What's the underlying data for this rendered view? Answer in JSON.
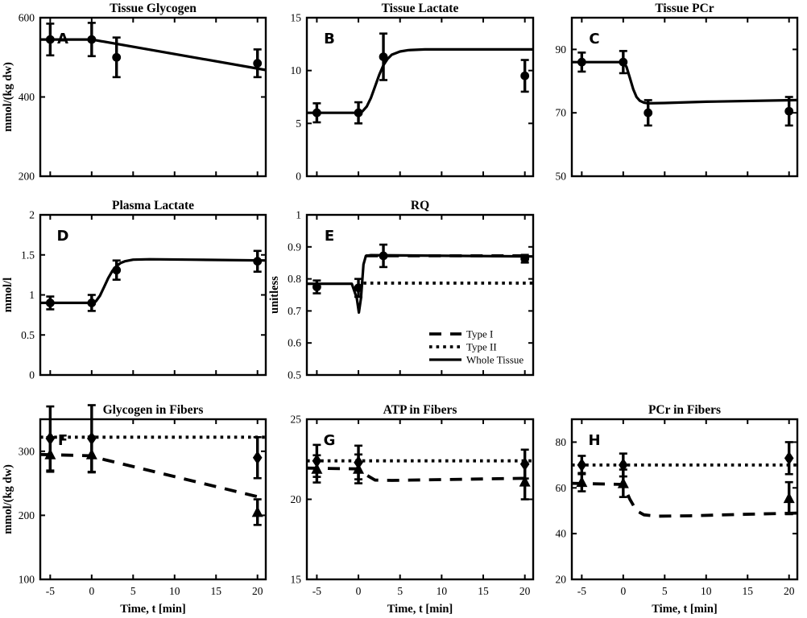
{
  "figure": {
    "background": "#ffffff",
    "ink": "#000000"
  },
  "chart_data": [
    {
      "id": "A",
      "type": "line",
      "title": "Tissue Glycogen",
      "ylabel": "mmol/(kg dw)",
      "xlabel": "",
      "row": 0,
      "col": 0,
      "xlim": [
        -6.2,
        21
      ],
      "ylim": [
        200,
        600
      ],
      "xticks": [
        -5,
        0,
        5,
        10,
        15,
        20
      ],
      "yticks": [
        200,
        400,
        600
      ],
      "show_xtick_labels": false,
      "series": [
        {
          "name": "Whole Tissue",
          "line_style": "solid",
          "marker": "circle",
          "line": [
            [
              -6.2,
              545
            ],
            [
              0,
              545
            ],
            [
              21,
              468
            ]
          ],
          "points": [
            {
              "x": -5,
              "y": 545,
              "err": 40
            },
            {
              "x": 0,
              "y": 545,
              "err": 42
            },
            {
              "x": 3,
              "y": 500,
              "err": 50
            },
            {
              "x": 20,
              "y": 485,
              "err": 35
            }
          ]
        }
      ]
    },
    {
      "id": "B",
      "type": "line",
      "title": "Tissue Lactate",
      "ylabel": "",
      "xlabel": "",
      "row": 0,
      "col": 1,
      "xlim": [
        -6.2,
        21
      ],
      "ylim": [
        0,
        15
      ],
      "xticks": [
        -5,
        0,
        5,
        10,
        15,
        20
      ],
      "yticks": [
        0,
        5,
        10,
        15
      ],
      "show_xtick_labels": false,
      "series": [
        {
          "name": "Whole Tissue",
          "line_style": "solid",
          "marker": "circle",
          "line": [
            [
              -6.2,
              6
            ],
            [
              0,
              6
            ],
            [
              0.5,
              6.15
            ],
            [
              1,
              6.6
            ],
            [
              1.5,
              7.4
            ],
            [
              2,
              8.5
            ],
            [
              2.5,
              9.6
            ],
            [
              3,
              10.5
            ],
            [
              3.5,
              11.1
            ],
            [
              4,
              11.5
            ],
            [
              5,
              11.8
            ],
            [
              6,
              11.93
            ],
            [
              8,
              12
            ],
            [
              21,
              12
            ]
          ],
          "points": [
            {
              "x": -5,
              "y": 6,
              "err": 0.9
            },
            {
              "x": 0,
              "y": 6,
              "err": 1.0
            },
            {
              "x": 3,
              "y": 11.3,
              "err": 2.2
            },
            {
              "x": 20,
              "y": 9.5,
              "err": 1.5
            }
          ]
        }
      ]
    },
    {
      "id": "C",
      "type": "line",
      "title": "Tissue PCr",
      "ylabel": "",
      "xlabel": "",
      "row": 0,
      "col": 2,
      "xlim": [
        -6.2,
        21
      ],
      "ylim": [
        50,
        100
      ],
      "xticks": [
        -5,
        0,
        5,
        10,
        15,
        20
      ],
      "yticks": [
        50,
        70,
        90
      ],
      "show_xtick_labels": false,
      "series": [
        {
          "name": "Whole Tissue",
          "line_style": "solid",
          "marker": "circle",
          "line": [
            [
              -6.2,
              86
            ],
            [
              0,
              86
            ],
            [
              0.4,
              84.5
            ],
            [
              0.8,
              81
            ],
            [
              1.2,
              77.5
            ],
            [
              1.6,
              75
            ],
            [
              2,
              73.8
            ],
            [
              2.5,
              73.2
            ],
            [
              3,
              73
            ],
            [
              5,
              73.1
            ],
            [
              10,
              73.5
            ],
            [
              21,
              74
            ]
          ],
          "points": [
            {
              "x": -5,
              "y": 86,
              "err": 3
            },
            {
              "x": 0,
              "y": 86,
              "err": 3.5
            },
            {
              "x": 3,
              "y": 70,
              "err": 4
            },
            {
              "x": 20,
              "y": 70.5,
              "err": 4.5
            }
          ]
        }
      ]
    },
    {
      "id": "D",
      "type": "line",
      "title": "Plasma Lactate",
      "ylabel": "mmol/l",
      "xlabel": "",
      "row": 1,
      "col": 0,
      "xlim": [
        -6.2,
        21
      ],
      "ylim": [
        0,
        2
      ],
      "xticks": [
        -5,
        0,
        5,
        10,
        15,
        20
      ],
      "yticks": [
        0,
        0.5,
        1,
        1.5,
        2
      ],
      "show_xtick_labels": false,
      "series": [
        {
          "name": "Whole Tissue",
          "line_style": "solid",
          "marker": "circle",
          "line": [
            [
              -6.2,
              0.9
            ],
            [
              0,
              0.9
            ],
            [
              0.5,
              0.92
            ],
            [
              1,
              0.99
            ],
            [
              1.5,
              1.1
            ],
            [
              2,
              1.21
            ],
            [
              2.5,
              1.3
            ],
            [
              3,
              1.36
            ],
            [
              3.5,
              1.4
            ],
            [
              4,
              1.42
            ],
            [
              5,
              1.44
            ],
            [
              7,
              1.445
            ],
            [
              12,
              1.44
            ],
            [
              21,
              1.43
            ]
          ],
          "points": [
            {
              "x": -5,
              "y": 0.9,
              "err": 0.08
            },
            {
              "x": 0,
              "y": 0.9,
              "err": 0.1
            },
            {
              "x": 3,
              "y": 1.31,
              "err": 0.12
            },
            {
              "x": 20,
              "y": 1.42,
              "err": 0.13
            }
          ]
        }
      ]
    },
    {
      "id": "E",
      "type": "line",
      "title": "RQ",
      "ylabel": "unitless",
      "xlabel": "",
      "row": 1,
      "col": 1,
      "xlim": [
        -6.2,
        21
      ],
      "ylim": [
        0.5,
        1
      ],
      "xticks": [
        -5,
        0,
        5,
        10,
        15,
        20
      ],
      "yticks": [
        0.5,
        0.6,
        0.7,
        0.8,
        0.9,
        1
      ],
      "show_xtick_labels": false,
      "series": [
        {
          "name": "Type I",
          "line_style": "dashed",
          "marker": "none",
          "line": [
            [
              0.9,
              0.872
            ],
            [
              21,
              0.872
            ]
          ],
          "points": []
        },
        {
          "name": "Type II",
          "line_style": "dotted",
          "marker": "none",
          "line": [
            [
              0.6,
              0.787
            ],
            [
              21,
              0.787
            ]
          ],
          "points": []
        },
        {
          "name": "Whole Tissue",
          "line_style": "solid",
          "marker": "circle",
          "line": [
            [
              -6.2,
              0.785
            ],
            [
              -0.8,
              0.785
            ],
            [
              -0.2,
              0.74
            ],
            [
              0.05,
              0.695
            ],
            [
              0.3,
              0.74
            ],
            [
              0.6,
              0.845
            ],
            [
              0.9,
              0.872
            ],
            [
              1.5,
              0.874
            ],
            [
              21,
              0.87
            ]
          ],
          "points": [
            {
              "x": -5,
              "y": 0.775,
              "err": 0.02
            },
            {
              "x": 0,
              "y": 0.772,
              "err": 0.028
            },
            {
              "x": 3,
              "y": 0.872,
              "err": 0.035
            },
            {
              "x": 20,
              "y": 0.863,
              "err": 0.012
            }
          ]
        }
      ],
      "legend": {
        "position": "lower-right",
        "entries": [
          {
            "label": "Type I",
            "style": "dashed"
          },
          {
            "label": "Type II",
            "style": "dotted"
          },
          {
            "label": "Whole Tissue",
            "style": "solid"
          }
        ]
      }
    },
    {
      "id": "F",
      "type": "line",
      "title": "Glycogen in Fibers",
      "ylabel": "mmol/(kg dw)",
      "xlabel": "Time, t [min]",
      "row": 2,
      "col": 0,
      "xlim": [
        -6.2,
        21
      ],
      "ylim": [
        100,
        350
      ],
      "xticks": [
        -5,
        0,
        5,
        10,
        15,
        20
      ],
      "yticks": [
        100,
        200,
        300
      ],
      "show_xtick_labels": true,
      "series": [
        {
          "name": "Type II",
          "line_style": "dotted",
          "marker": "diamond",
          "line": [
            [
              -6.2,
              322
            ],
            [
              21,
              322
            ]
          ],
          "points": [
            {
              "x": -5,
              "y": 320,
              "err": 50
            },
            {
              "x": 0,
              "y": 320,
              "err": 52
            },
            {
              "x": 20,
              "y": 290,
              "err": 32
            }
          ]
        },
        {
          "name": "Type I",
          "line_style": "dashed",
          "marker": "triangle",
          "line": [
            [
              -6.2,
              295
            ],
            [
              0,
              293
            ],
            [
              1.5,
              287
            ],
            [
              21,
              226
            ]
          ],
          "points": [
            {
              "x": -5,
              "y": 295,
              "err": 27
            },
            {
              "x": 0,
              "y": 295,
              "err": 28
            },
            {
              "x": 20,
              "y": 205,
              "err": 20
            }
          ]
        }
      ]
    },
    {
      "id": "G",
      "type": "line",
      "title": "ATP in Fibers",
      "ylabel": "",
      "xlabel": "Time, t [min]",
      "row": 2,
      "col": 1,
      "xlim": [
        -6.2,
        21
      ],
      "ylim": [
        15,
        25
      ],
      "xticks": [
        -5,
        0,
        5,
        10,
        15,
        20
      ],
      "yticks": [
        15,
        20,
        25
      ],
      "show_xtick_labels": true,
      "series": [
        {
          "name": "Type II",
          "line_style": "dotted",
          "marker": "diamond",
          "line": [
            [
              -6.2,
              22.4
            ],
            [
              21,
              22.4
            ]
          ],
          "points": [
            {
              "x": -5,
              "y": 22.4,
              "err": 1.0
            },
            {
              "x": 0,
              "y": 22.3,
              "err": 1.05
            },
            {
              "x": 20,
              "y": 22.2,
              "err": 0.9
            }
          ]
        },
        {
          "name": "Type I",
          "line_style": "dashed",
          "marker": "triangle",
          "line": [
            [
              -6.2,
              21.95
            ],
            [
              0,
              21.9
            ],
            [
              1,
              21.5
            ],
            [
              2,
              21.2
            ],
            [
              4,
              21.18
            ],
            [
              21,
              21.32
            ]
          ],
          "points": [
            {
              "x": -5,
              "y": 21.9,
              "err": 0.85
            },
            {
              "x": 0,
              "y": 21.9,
              "err": 0.9
            },
            {
              "x": 20,
              "y": 21.1,
              "err": 1.1
            }
          ]
        }
      ]
    },
    {
      "id": "H",
      "type": "line",
      "title": "PCr in Fibers",
      "ylabel": "",
      "xlabel": "Time, t [min]",
      "row": 2,
      "col": 2,
      "xlim": [
        -6.2,
        21
      ],
      "ylim": [
        20,
        90
      ],
      "xticks": [
        -5,
        0,
        5,
        10,
        15,
        20
      ],
      "yticks": [
        20,
        40,
        60,
        80
      ],
      "show_xtick_labels": true,
      "series": [
        {
          "name": "Type II",
          "line_style": "dotted",
          "marker": "diamond",
          "line": [
            [
              -6.2,
              70
            ],
            [
              21,
              70
            ]
          ],
          "points": [
            {
              "x": -5,
              "y": 70,
              "err": 4
            },
            {
              "x": 0,
              "y": 70,
              "err": 5
            },
            {
              "x": 20,
              "y": 73,
              "err": 7
            }
          ]
        },
        {
          "name": "Type I",
          "line_style": "dashed",
          "marker": "triangle",
          "line": [
            [
              -6.2,
              62
            ],
            [
              0,
              61.5
            ],
            [
              0.8,
              55
            ],
            [
              1.6,
              50
            ],
            [
              2.5,
              48.2
            ],
            [
              4,
              47.6
            ],
            [
              8,
              47.8
            ],
            [
              14,
              48.4
            ],
            [
              21,
              49
            ]
          ],
          "points": [
            {
              "x": -5,
              "y": 62.5,
              "err": 4
            },
            {
              "x": 0,
              "y": 62,
              "err": 6
            },
            {
              "x": 20,
              "y": 55.5,
              "err": 7
            }
          ]
        }
      ]
    }
  ]
}
